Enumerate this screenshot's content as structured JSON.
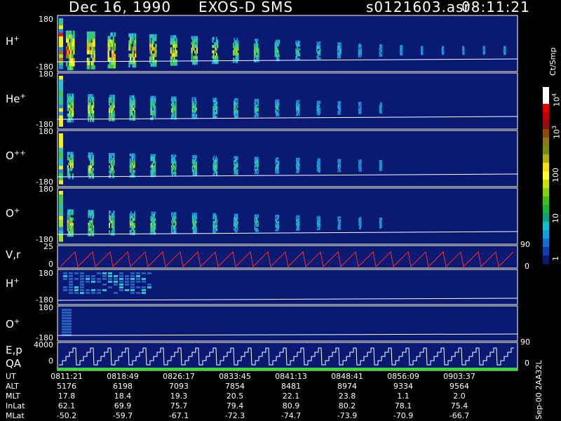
{
  "header": {
    "date": "Dec 16, 1990",
    "instrument": "EXOS-D SMS",
    "file": "s0121603.asr",
    "time": "08:11:21"
  },
  "colors": {
    "background": "#000000",
    "panel_bg": "#0a1a73",
    "trace": "#ffffff",
    "red_trace": "#ff2a2a",
    "qa_green": "#33dd33"
  },
  "panels": {
    "hplus": {
      "label": "H",
      "sup": "+",
      "ymax": "180",
      "ymin": "-180"
    },
    "heplus": {
      "label": "He",
      "sup": "+",
      "ymax": "180",
      "ymin": "-180"
    },
    "oplusplus": {
      "label": "O",
      "sup": "++",
      "ymax": "180",
      "ymin": "-180"
    },
    "oplus": {
      "label": "O",
      "sup": "+",
      "ymax": "180",
      "ymin": "-180"
    },
    "vr": {
      "label": "V,r",
      "ymax": "25",
      "ymin": "0",
      "right_top": "90",
      "right_bottom": "0"
    },
    "hplus2": {
      "label": "H",
      "sup": "+",
      "ymax": "180",
      "ymin": "-180"
    },
    "oplus2": {
      "label": "O",
      "sup": "+",
      "ymax": "180",
      "ymin": "-180"
    },
    "ep": {
      "label": "E,p",
      "label2": "QA",
      "ymax": "4000",
      "ymin": "0",
      "right_top": "90",
      "right_bottom": "0"
    }
  },
  "colorbar": {
    "unit": "Ct/Smp",
    "ticks": [
      {
        "label": "10",
        "sup": "4"
      },
      {
        "label": "10",
        "sup": "3"
      },
      {
        "label": "100",
        "sup": ""
      },
      {
        "label": "10",
        "sup": ""
      },
      {
        "label": "1",
        "sup": ""
      }
    ]
  },
  "time_table": {
    "rows": [
      {
        "label": "UT",
        "values": [
          "0811:21",
          "0818:49",
          "0826:17",
          "0833:45",
          "0841:13",
          "0848:41",
          "0856:09",
          "0903:37"
        ]
      },
      {
        "label": "ALT",
        "values": [
          "5176",
          "6198",
          "7093",
          "7854",
          "8481",
          "8974",
          "9334",
          "9564"
        ]
      },
      {
        "label": "MLT",
        "values": [
          "17.8",
          "18.4",
          "19.3",
          "20.5",
          "22.1",
          "23.8",
          "1.1",
          "2.0"
        ]
      },
      {
        "label": "InLat",
        "values": [
          "62.1",
          "69.9",
          "75.7",
          "79.4",
          "80.9",
          "80.2",
          "78.1",
          "75.4"
        ]
      },
      {
        "label": "MLat",
        "values": [
          "-50.2",
          "-59.7",
          "-67.1",
          "-72.3",
          "-74.7",
          "-73.9",
          "-70.9",
          "-66.7"
        ]
      }
    ]
  },
  "footer": "Sep-00 2AA32L",
  "chart_data": {
    "type": "heatmap",
    "title": "Dec 16, 1990   EXOS-D SMS",
    "x_ticks": [
      "0811:21",
      "0818:49",
      "0826:17",
      "0833:45",
      "0841:13",
      "0848:41",
      "0856:09",
      "0903:37"
    ],
    "colorbar_label": "Ct/Smp",
    "colorbar_range": [
      1,
      10000
    ],
    "colorbar_scale": "log",
    "panels": [
      {
        "name": "H+",
        "ylim": [
          -180,
          180
        ]
      },
      {
        "name": "He+",
        "ylim": [
          -180,
          180
        ]
      },
      {
        "name": "O++",
        "ylim": [
          -180,
          180
        ]
      },
      {
        "name": "O+",
        "ylim": [
          -180,
          180
        ]
      },
      {
        "name": "V,r",
        "ylim": [
          0,
          25
        ]
      },
      {
        "name": "H+",
        "ylim": [
          -180,
          180
        ]
      },
      {
        "name": "O+",
        "ylim": [
          -180,
          180
        ]
      },
      {
        "name": "E,p",
        "ylim": [
          0,
          4000
        ]
      }
    ]
  }
}
